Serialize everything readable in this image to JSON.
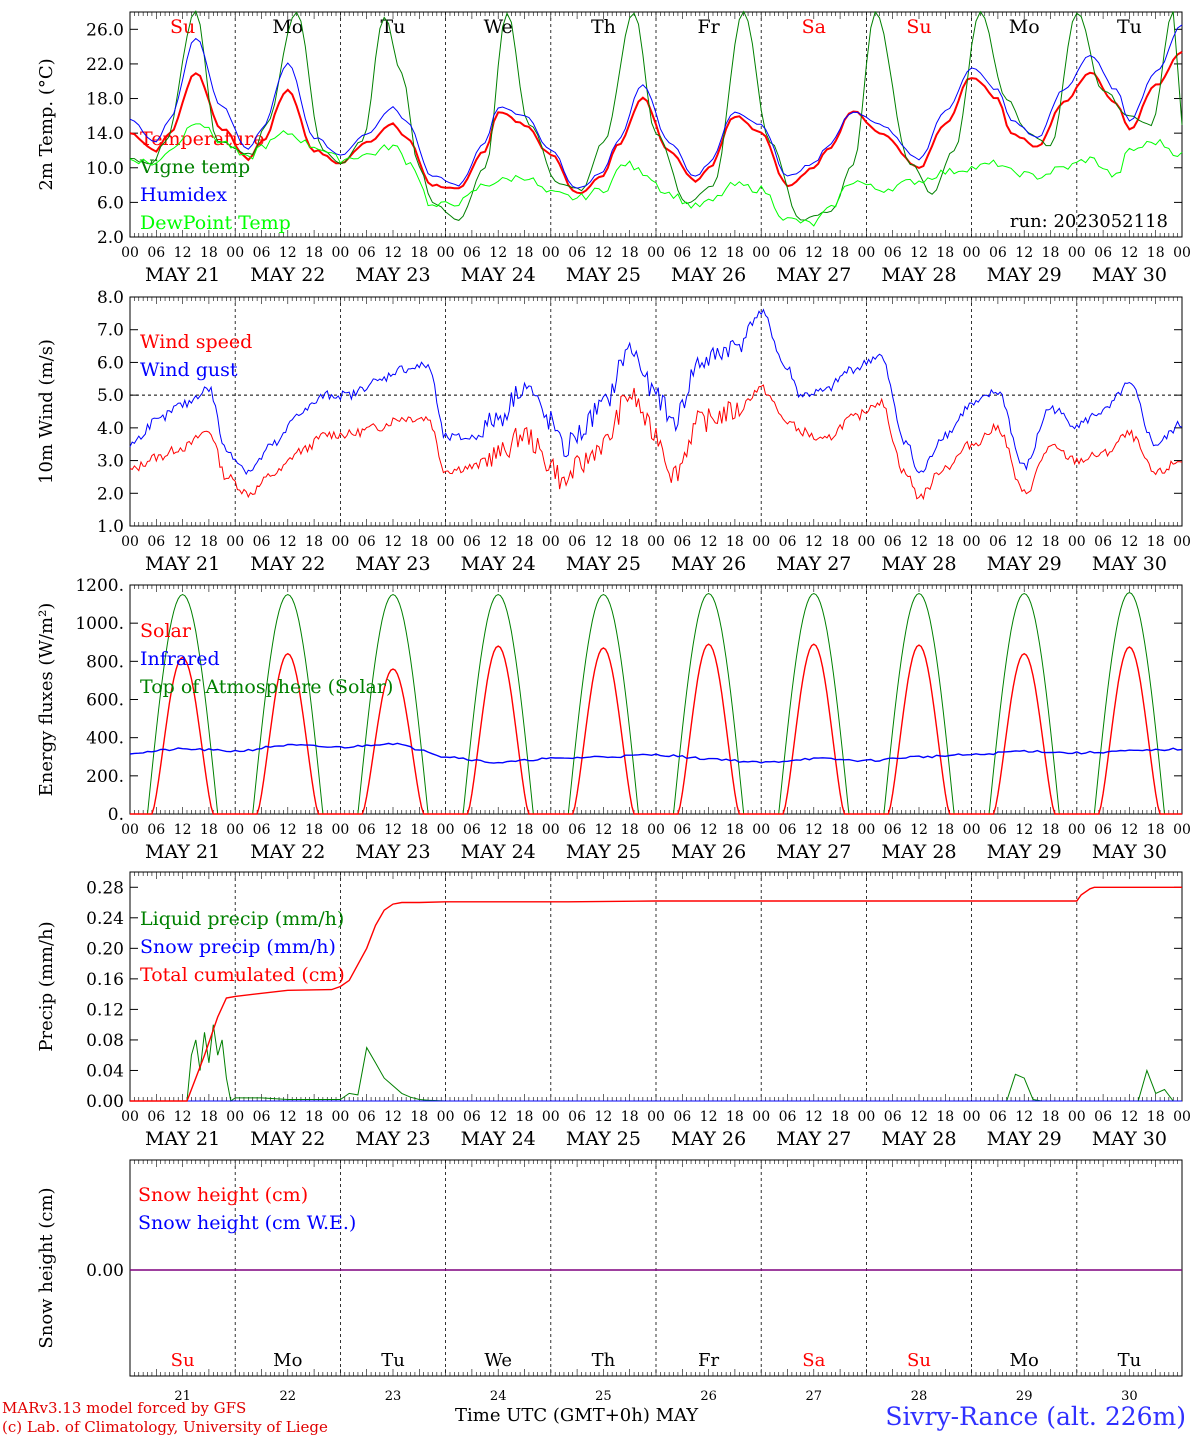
{
  "meta": {
    "run_label": "run: 2023052118",
    "model_line": "MARv3.13 model forced by GFS",
    "credit_line": "(c) Lab. of Climatology, University of Liege",
    "station": "Sivry-Rance (alt. 226m)",
    "x_axis_title": "Time UTC (GMT+0h)",
    "month_label": "MAY"
  },
  "colors": {
    "red": "#ff0000",
    "blue": "#0000ff",
    "darkgreen": "#008000",
    "lightgreen": "#00ff00",
    "purple": "#7f007f",
    "weekend": "#ff0000",
    "weekday": "#000000"
  },
  "days": {
    "dates": [
      "MAY 21",
      "MAY 22",
      "MAY 23",
      "MAY 24",
      "MAY 25",
      "MAY 26",
      "MAY 27",
      "MAY 28",
      "MAY 29",
      "MAY 30"
    ],
    "day_numbers": [
      "21",
      "22",
      "23",
      "24",
      "25",
      "26",
      "27",
      "28",
      "29",
      "30"
    ],
    "weekdays": [
      "Su",
      "Mo",
      "Tu",
      "We",
      "Th",
      "Fr",
      "Sa",
      "Su",
      "Mo",
      "Tu"
    ],
    "weekend": [
      true,
      false,
      false,
      false,
      false,
      false,
      true,
      true,
      false,
      false
    ],
    "hour_ticks": [
      "00",
      "06",
      "12",
      "18"
    ]
  },
  "chart_data": [
    {
      "type": "line",
      "ylabel": "2m Temp. (°C)",
      "ylim": [
        2,
        28
      ],
      "yticks": [
        "2.0",
        "6.0",
        "10.0",
        "14.0",
        "18.0",
        "22.0",
        "26.0"
      ],
      "x_unit": "hours since 2023-05-21 00 UTC",
      "series": [
        {
          "name": "Temperature",
          "color": "#ff0000",
          "x": [
            0,
            6,
            9,
            15,
            21,
            27,
            30,
            36,
            42,
            48,
            54,
            60,
            63,
            69,
            75,
            81,
            84,
            90,
            96,
            102,
            108,
            111,
            117,
            123,
            129,
            132,
            138,
            144,
            150,
            156,
            159,
            165,
            171,
            180,
            186,
            192,
            198,
            201,
            207,
            213,
            219,
            225,
            228,
            234,
            240
          ],
          "y": [
            14.0,
            12.0,
            14.0,
            21.0,
            14.5,
            11.0,
            13.0,
            19.0,
            12.0,
            10.5,
            13.0,
            15.0,
            13.5,
            8.0,
            7.5,
            12.0,
            16.5,
            15.0,
            11.5,
            7.0,
            9.0,
            12.5,
            18.0,
            12.0,
            8.5,
            10.0,
            16.0,
            14.0,
            8.0,
            10.0,
            12.0,
            16.5,
            14.0,
            10.0,
            15.0,
            20.5,
            18.0,
            14.0,
            12.5,
            17.5,
            21.0,
            17.5,
            14.5,
            19.5,
            23.5
          ]
        },
        {
          "name": "Vigne temp",
          "color": "#008000",
          "x": [
            0,
            5,
            8,
            15,
            20,
            28,
            31,
            38,
            44,
            48,
            53,
            58,
            62,
            66,
            69,
            75,
            81,
            86,
            91,
            98,
            103,
            108,
            115,
            120,
            127,
            133,
            140,
            146,
            153,
            160,
            165,
            170,
            178,
            183,
            188,
            194,
            200,
            205,
            210,
            216,
            222,
            228,
            233,
            238,
            240
          ],
          "y": [
            11.0,
            10.5,
            13.0,
            28.0,
            13.0,
            11.5,
            15.0,
            28.0,
            12.0,
            10.5,
            13.0,
            27.5,
            21.0,
            10.0,
            6.0,
            4.0,
            10.0,
            28.0,
            15.0,
            8.0,
            7.5,
            13.0,
            28.0,
            14.0,
            6.0,
            8.0,
            28.0,
            13.0,
            4.0,
            5.0,
            10.5,
            28.0,
            10.5,
            7.0,
            12.0,
            28.0,
            18.0,
            14.0,
            12.5,
            28.0,
            19.0,
            16.0,
            15.0,
            28.0,
            15.0
          ]
        },
        {
          "name": "Humidex",
          "color": "#0000ff",
          "x": [
            0,
            6,
            9,
            15,
            21,
            27,
            30,
            36,
            42,
            48,
            54,
            60,
            63,
            69,
            75,
            81,
            84,
            90,
            96,
            102,
            108,
            111,
            117,
            123,
            129,
            132,
            138,
            144,
            150,
            156,
            159,
            165,
            171,
            180,
            186,
            192,
            198,
            201,
            207,
            213,
            219,
            225,
            228,
            234,
            240
          ],
          "y": [
            15.5,
            13.0,
            15.5,
            25.0,
            17.0,
            12.0,
            14.5,
            22.0,
            13.5,
            11.5,
            14.0,
            17.0,
            15.5,
            9.0,
            8.0,
            13.0,
            17.0,
            16.0,
            12.0,
            7.5,
            9.5,
            13.0,
            19.5,
            13.0,
            9.0,
            10.5,
            16.5,
            15.0,
            9.0,
            10.5,
            12.5,
            16.5,
            15.0,
            11.0,
            16.5,
            21.5,
            19.0,
            15.5,
            13.5,
            19.0,
            23.0,
            19.0,
            15.5,
            21.0,
            26.5
          ]
        },
        {
          "name": "DewPoint Temp",
          "color": "#00ff00",
          "x": [
            0,
            6,
            10,
            15,
            21,
            27,
            30,
            36,
            42,
            48,
            54,
            60,
            64,
            69,
            75,
            81,
            84,
            90,
            96,
            102,
            108,
            113,
            117,
            123,
            129,
            132,
            138,
            144,
            150,
            156,
            159,
            165,
            171,
            180,
            186,
            192,
            198,
            201,
            207,
            213,
            219,
            225,
            228,
            234,
            240
          ],
          "y": [
            11.0,
            10.5,
            12.5,
            15.5,
            13.0,
            11.0,
            12.5,
            14.0,
            12.5,
            11.0,
            11.5,
            12.5,
            10.5,
            5.5,
            6.0,
            8.0,
            8.5,
            9.0,
            7.0,
            6.5,
            7.5,
            10.5,
            9.5,
            7.0,
            5.5,
            6.0,
            8.0,
            7.5,
            4.0,
            3.5,
            5.0,
            8.5,
            7.5,
            8.5,
            9.5,
            10.0,
            10.5,
            9.5,
            9.0,
            10.0,
            11.0,
            9.0,
            12.0,
            13.0,
            11.5
          ]
        }
      ]
    },
    {
      "type": "line",
      "ylabel": "10m Wind (m/s)",
      "ylim": [
        1,
        8
      ],
      "yticks": [
        "1.0",
        "2.0",
        "3.0",
        "4.0",
        "5.0",
        "6.0",
        "7.0",
        "8.0"
      ],
      "reference_line": 5.0,
      "series": [
        {
          "name": "Wind speed",
          "color": "#ff0000",
          "x": [
            0,
            6,
            12,
            18,
            22,
            27,
            33,
            39,
            45,
            50,
            56,
            62,
            68,
            72,
            78,
            84,
            90,
            96,
            99,
            102,
            108,
            114,
            120,
            124,
            130,
            138,
            144,
            150,
            153,
            158,
            165,
            171,
            177,
            180,
            186,
            192,
            198,
            204,
            210,
            216,
            222,
            228,
            234,
            240
          ],
          "y": [
            2.7,
            3.1,
            3.4,
            3.9,
            2.5,
            2.0,
            2.6,
            3.3,
            3.8,
            3.8,
            4.0,
            4.3,
            4.3,
            2.7,
            2.8,
            3.2,
            3.8,
            2.9,
            2.3,
            2.8,
            3.5,
            5.0,
            3.8,
            2.6,
            4.2,
            4.5,
            5.2,
            4.2,
            3.9,
            3.6,
            4.3,
            4.8,
            2.6,
            1.9,
            2.8,
            3.5,
            4.0,
            2.0,
            3.4,
            3.0,
            3.2,
            3.8,
            2.6,
            3.0
          ]
        },
        {
          "name": "Wind gust",
          "color": "#0000ff",
          "x": [
            0,
            6,
            12,
            18,
            22,
            27,
            33,
            39,
            45,
            50,
            56,
            62,
            68,
            72,
            78,
            84,
            90,
            96,
            99,
            102,
            108,
            114,
            120,
            124,
            130,
            138,
            144,
            150,
            153,
            158,
            165,
            171,
            177,
            180,
            186,
            192,
            198,
            204,
            210,
            216,
            222,
            228,
            234,
            240
          ],
          "y": [
            3.5,
            4.2,
            4.7,
            5.2,
            3.3,
            2.7,
            3.5,
            4.5,
            5.0,
            5.0,
            5.4,
            5.8,
            5.9,
            3.7,
            3.7,
            4.3,
            5.3,
            4.2,
            3.3,
            3.8,
            4.7,
            6.4,
            5.0,
            4.2,
            6.0,
            6.5,
            7.5,
            5.8,
            5.0,
            5.1,
            5.8,
            6.2,
            3.6,
            2.6,
            3.8,
            4.7,
            5.1,
            2.8,
            4.6,
            4.1,
            4.5,
            5.3,
            3.5,
            4.1
          ]
        }
      ]
    },
    {
      "type": "line",
      "ylabel": "Energy fluxes (W/m²)",
      "ylim": [
        0,
        1200
      ],
      "yticks": [
        "0.",
        "200.",
        "400.",
        "600.",
        "800.",
        "1000.",
        "1200."
      ],
      "diurnal": {
        "toa_peak": [
          1150,
          1150,
          1150,
          1150,
          1150,
          1155,
          1155,
          1155,
          1155,
          1160
        ],
        "solar_peak": [
          820,
          840,
          760,
          880,
          870,
          890,
          890,
          885,
          840,
          875
        ],
        "sunrise_hour": 4,
        "sunset_hour": 20
      },
      "series": [
        {
          "name": "Solar",
          "color": "#ff0000"
        },
        {
          "name": "Infrared",
          "color": "#0000ff",
          "x": [
            0,
            12,
            24,
            36,
            48,
            60,
            66,
            72,
            84,
            96,
            108,
            120,
            132,
            144,
            156,
            168,
            180,
            192,
            204,
            216,
            228,
            240
          ],
          "y": [
            320,
            340,
            330,
            360,
            350,
            370,
            340,
            300,
            270,
            290,
            300,
            310,
            290,
            270,
            290,
            280,
            300,
            310,
            330,
            320,
            330,
            340
          ]
        },
        {
          "name": "Top of Atmosphere (Solar)",
          "color": "#008000"
        }
      ]
    },
    {
      "type": "line",
      "ylabel": "Precip (mm/h)",
      "ylim": [
        0,
        0.3
      ],
      "yticks": [
        "0.00",
        "0.04",
        "0.08",
        "0.12",
        "0.16",
        "0.20",
        "0.24",
        "0.28"
      ],
      "series": [
        {
          "name": "Liquid precip (mm/h)",
          "color": "#008000",
          "x": [
            0,
            13,
            14,
            15,
            16,
            17,
            18,
            19,
            20,
            21,
            22,
            23,
            24,
            30,
            36,
            48,
            50,
            52,
            54,
            56,
            58,
            60,
            62,
            64,
            66,
            68,
            72,
            96,
            200,
            202,
            204,
            206,
            208,
            230,
            232,
            234,
            236,
            238,
            240
          ],
          "y": [
            0,
            0,
            0.06,
            0.08,
            0.04,
            0.09,
            0.05,
            0.1,
            0.06,
            0.08,
            0.03,
            0,
            0.004,
            0.004,
            0.002,
            0.002,
            0.01,
            0.008,
            0.07,
            0.05,
            0.03,
            0.02,
            0.01,
            0.005,
            0.002,
            0.001,
            0,
            0,
            0,
            0.035,
            0.03,
            0.002,
            0,
            0,
            0.04,
            0.01,
            0.015,
            0,
            0
          ]
        },
        {
          "name": "Snow precip (mm/h)",
          "color": "#0000ff",
          "x": [
            0,
            240
          ],
          "y": [
            0,
            0
          ]
        },
        {
          "name": "Total cumulated (cm)",
          "color": "#ff0000",
          "x": [
            0,
            13,
            17,
            20,
            22,
            24,
            36,
            46,
            48,
            50,
            54,
            56,
            58,
            60,
            62,
            66,
            72,
            100,
            120,
            216,
            217,
            219,
            220,
            221,
            222,
            240
          ],
          "y": [
            0,
            0,
            0.06,
            0.11,
            0.135,
            0.137,
            0.145,
            0.146,
            0.15,
            0.158,
            0.2,
            0.23,
            0.25,
            0.258,
            0.26,
            0.26,
            0.261,
            0.261,
            0.262,
            0.262,
            0.27,
            0.278,
            0.28,
            0.28,
            0.28,
            0.28
          ]
        }
      ]
    },
    {
      "type": "line",
      "ylabel": "Snow height (cm)",
      "yticks": [
        "0.00"
      ],
      "series": [
        {
          "name": "Snow height (cm)",
          "color": "#ff0000",
          "x": [
            0,
            240
          ],
          "y": [
            0,
            0
          ]
        },
        {
          "name": "Snow height (cm W.E.)",
          "color": "#0000ff",
          "x": [
            0,
            240
          ],
          "y": [
            0,
            0
          ]
        }
      ]
    }
  ]
}
